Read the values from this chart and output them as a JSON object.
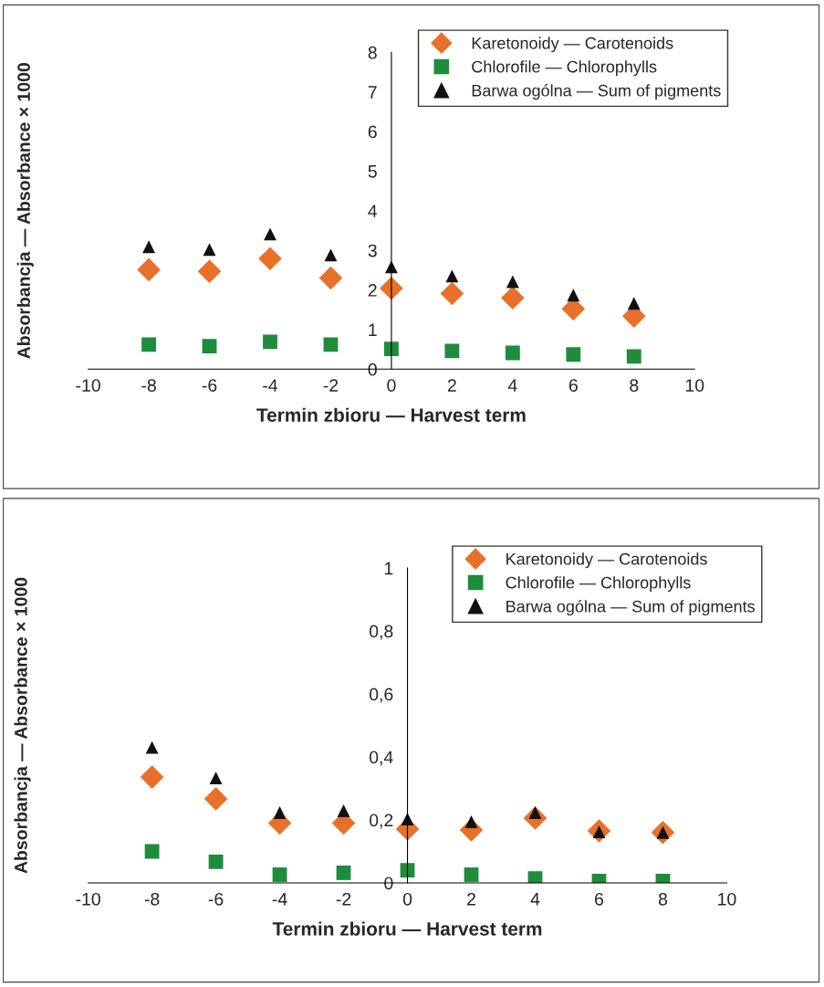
{
  "chart_data": [
    {
      "type": "scatter",
      "xlabel": "Termin zbioru — Harvest term",
      "ylabel": "Absorbancja — Absorbance × 1000",
      "x": [
        -8,
        -6,
        -4,
        -2,
        0,
        2,
        4,
        6,
        8
      ],
      "xlim": [
        -10,
        10
      ],
      "xticks": [
        -10,
        -8,
        -6,
        -4,
        -2,
        0,
        2,
        4,
        6,
        8,
        10
      ],
      "ylim": [
        0,
        8
      ],
      "yticks": [
        0,
        1,
        2,
        3,
        4,
        5,
        6,
        7,
        8
      ],
      "legend": "top right",
      "grid": false,
      "series": [
        {
          "name": "Karetonoidy — Carotenoids",
          "color": "#e8702a",
          "marker": "diamond",
          "values": [
            2.51,
            2.47,
            2.79,
            2.3,
            2.04,
            1.91,
            1.8,
            1.52,
            1.34
          ]
        },
        {
          "name": "Chlorofile — Chlorophylls",
          "color": "#1e8c3c",
          "marker": "square",
          "values": [
            0.62,
            0.58,
            0.69,
            0.62,
            0.51,
            0.46,
            0.41,
            0.37,
            0.32
          ]
        },
        {
          "name": "Barwa ogólna — Sum of pigments",
          "color": "#111111",
          "marker": "triangle",
          "values": [
            3.09,
            3.02,
            3.41,
            2.88,
            2.58,
            2.35,
            2.21,
            1.87,
            1.66
          ]
        }
      ]
    },
    {
      "type": "scatter",
      "xlabel": "Termin zbioru — Harvest term",
      "ylabel": "Absorbancja — Absorbance × 1000",
      "x": [
        -8,
        -6,
        -4,
        -2,
        0,
        2,
        4,
        6,
        8
      ],
      "xlim": [
        -10,
        10
      ],
      "xticks": [
        -10,
        -8,
        -6,
        -4,
        -2,
        0,
        2,
        4,
        6,
        8,
        10
      ],
      "ylim": [
        0,
        1
      ],
      "yticks": [
        0,
        {
          "value": 0.2,
          "label": "0,2"
        },
        {
          "value": 0.4,
          "label": "0,4"
        },
        {
          "value": 0.6,
          "label": "0,6"
        },
        {
          "value": 0.8,
          "label": "0,8"
        },
        1
      ],
      "legend": "top right",
      "grid": false,
      "series": [
        {
          "name": "Karetonoidy — Carotenoids",
          "color": "#e8702a",
          "marker": "diamond",
          "values": [
            0.336,
            0.267,
            0.19,
            0.19,
            0.171,
            0.168,
            0.206,
            0.165,
            0.16
          ]
        },
        {
          "name": "Chlorofile — Chlorophylls",
          "color": "#1e8c3c",
          "marker": "square",
          "values": [
            0.1,
            0.067,
            0.026,
            0.032,
            0.04,
            0.026,
            0.014,
            0.006,
            0.006
          ]
        },
        {
          "name": "Barwa ogólna — Sum of pigments",
          "color": "#111111",
          "marker": "triangle",
          "values": [
            0.43,
            0.333,
            0.223,
            0.229,
            0.203,
            0.194,
            0.223,
            0.162,
            0.16
          ]
        }
      ]
    }
  ]
}
